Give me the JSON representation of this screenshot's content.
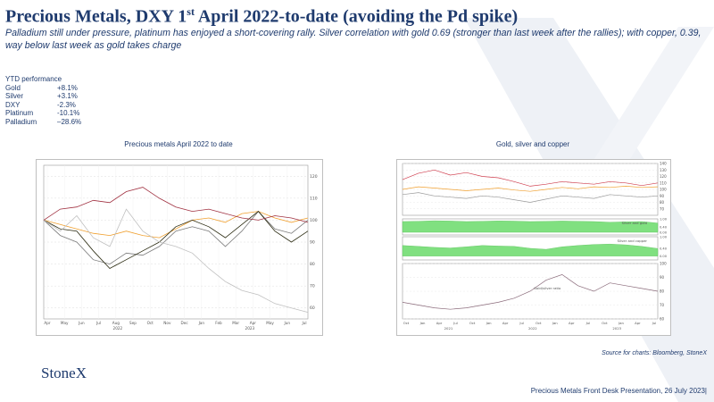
{
  "slide": {
    "title_pre": "Precious Metals, DXY 1",
    "title_sup": "st",
    "title_post": " April 2022-to-date (avoiding the Pd spike)",
    "subtitle": "Palladium still under pressure, platinum has enjoyed a short-covering rally.  Silver correlation with gold 0.69 (stronger than last week after the rallies); with copper, 0.39, way below last week as gold takes charge",
    "source": "Source for charts: Bloomberg, StoneX",
    "logo": "StoneX",
    "footer": "Precious Metals Front Desk Presentation, 26 July 2023|"
  },
  "ytd": {
    "header": "YTD performance",
    "rows": [
      {
        "name": "Gold",
        "value": "+8.1%"
      },
      {
        "name": "Silver",
        "value": "+3.1%"
      },
      {
        "name": "DXY",
        "value": "-2.3%"
      },
      {
        "name": "Platinum",
        "value": "-10.1%"
      },
      {
        "name": "Palladium",
        "value": "–28.6%"
      }
    ]
  },
  "chart_data": [
    {
      "type": "line",
      "title": "Precious metals April 2022 to date",
      "x_ticks": [
        "Apr",
        "May",
        "Jun",
        "Jul",
        "Aug",
        "Sep",
        "Oct",
        "Nov",
        "Dec",
        "Jan",
        "Feb",
        "Mar",
        "Apr",
        "May",
        "Jun",
        "Jul"
      ],
      "year_labels": [
        "2022",
        "2023"
      ],
      "ylim": [
        55,
        125
      ],
      "y_ticks": [
        60,
        70,
        80,
        90,
        100,
        110,
        120
      ],
      "colors": {
        "gold": "#f0a030",
        "silver": "#7a7a7a",
        "platinum": "#2a2a10",
        "palladium": "#c0c0c0",
        "dxy": "#a03040"
      },
      "series": [
        {
          "name": "",
          "key": "gold",
          "values": [
            100,
            98,
            96,
            94,
            93,
            95,
            93,
            92,
            96,
            100,
            101,
            99,
            103,
            104,
            101,
            99,
            101
          ]
        },
        {
          "name": "",
          "key": "silver",
          "values": [
            100,
            93,
            90,
            82,
            80,
            85,
            84,
            88,
            95,
            97,
            95,
            88,
            95,
            104,
            96,
            94,
            100
          ]
        },
        {
          "name": "",
          "key": "platinum",
          "values": [
            100,
            96,
            95,
            86,
            78,
            82,
            86,
            90,
            97,
            100,
            97,
            92,
            98,
            104,
            95,
            90,
            95
          ]
        },
        {
          "name": "",
          "key": "palladium",
          "values": [
            100,
            95,
            102,
            92,
            88,
            105,
            95,
            90,
            88,
            85,
            78,
            72,
            68,
            66,
            62,
            60,
            58
          ]
        },
        {
          "name": "",
          "key": "dxy",
          "values": [
            100,
            105,
            106,
            109,
            108,
            113,
            115,
            110,
            106,
            104,
            105,
            103,
            101,
            100,
            102,
            101,
            99
          ]
        }
      ]
    },
    {
      "type": "line",
      "title": "Gold, silver and copper",
      "x_ticks": [
        "Oct",
        "Jan",
        "Apr",
        "Jul",
        "Oct",
        "Jan",
        "Apr",
        "Jul",
        "Oct",
        "Jan",
        "Apr",
        "Jul",
        "Oct",
        "Jan",
        "Apr",
        "Jul"
      ],
      "year_labels": [
        "2021",
        "2022",
        "2023"
      ],
      "panel_labels": [
        "Silver and gold",
        "Silver and copper",
        "Gold/silver ratio"
      ],
      "colors": {
        "gold": "#f0a030",
        "silver": "#9a9a9a",
        "copper": "#d04050",
        "corr": "#80e080",
        "ratio": "#8a6a7a"
      },
      "top": {
        "ylim": [
          60,
          140
        ],
        "y_ticks": [
          70,
          80,
          90,
          100,
          110,
          120,
          130,
          140
        ],
        "series": [
          {
            "name": "",
            "key": "copper",
            "values": [
              115,
              125,
              130,
              122,
              126,
              120,
              118,
              112,
              105,
              108,
              112,
              110,
              108,
              112,
              110,
              106,
              110
            ]
          },
          {
            "name": "",
            "key": "gold",
            "values": [
              100,
              104,
              102,
              100,
              98,
              100,
              102,
              99,
              97,
              100,
              103,
              101,
              104,
              103,
              105,
              103,
              104
            ]
          },
          {
            "name": "",
            "key": "silver",
            "values": [
              92,
              95,
              90,
              88,
              86,
              90,
              88,
              84,
              80,
              85,
              90,
              88,
              86,
              92,
              90,
              88,
              90
            ]
          }
        ]
      },
      "corr1": {
        "ylim": [
          -0.2,
          1.0
        ],
        "values": [
          0.8,
          0.82,
          0.86,
          0.84,
          0.8,
          0.82,
          0.85,
          0.83,
          0.8,
          0.81,
          0.84,
          0.82,
          0.8,
          0.75,
          0.78,
          0.8,
          0.69
        ]
      },
      "corr2": {
        "ylim": [
          -0.2,
          1.0
        ],
        "values": [
          0.55,
          0.5,
          0.45,
          0.42,
          0.48,
          0.55,
          0.52,
          0.5,
          0.4,
          0.35,
          0.48,
          0.55,
          0.6,
          0.62,
          0.58,
          0.5,
          0.39
        ]
      },
      "ratio": {
        "ylim": [
          60,
          100
        ],
        "y_ticks": [
          60,
          70,
          80,
          90,
          100
        ],
        "values": [
          72,
          70,
          68,
          67,
          68,
          70,
          72,
          75,
          80,
          88,
          92,
          84,
          80,
          86,
          84,
          82,
          80
        ]
      }
    }
  ]
}
